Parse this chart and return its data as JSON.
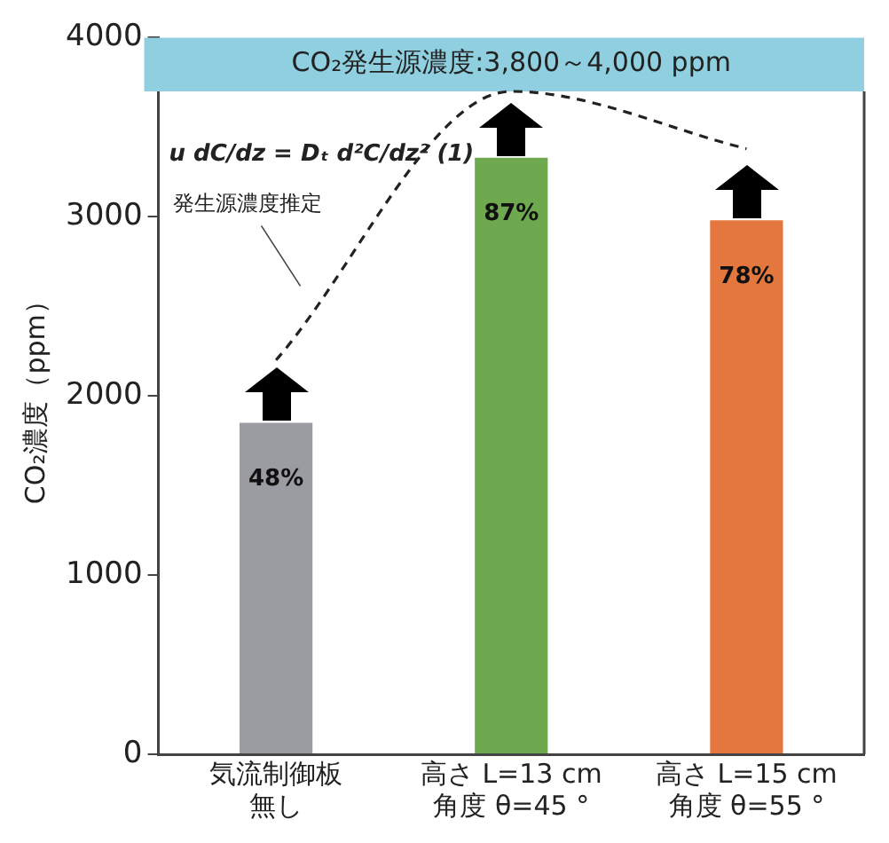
{
  "chart_data": {
    "type": "bar",
    "ylabel": "CO₂濃度（ppm）",
    "categories": [
      "気流制御板無し",
      "高さ L=13 cm 角度 θ=45 °",
      "高さ L=15 cm 角度 θ=55 °"
    ],
    "series": [
      {
        "values": [
          1850,
          3330,
          2980
        ],
        "colors": [
          "#9b9ca1",
          "#6fa94f",
          "#e4773d"
        ]
      },
      {
        "type": "line",
        "values": [
          2200,
          3700,
          3380
        ],
        "color": "#222222",
        "line_style": "dashed",
        "marker": "none"
      }
    ],
    "ylim": [
      0,
      4000
    ],
    "yticks": [
      0,
      1000,
      2000,
      3000,
      4000
    ],
    "grid": false,
    "legend": false,
    "bands": [
      {
        "axis": "y",
        "from": 3700,
        "to": 4000,
        "label": "CO₂発生源濃度:3,800～4,000 ppm",
        "color": "#8fcfdf"
      }
    ],
    "annotations": [
      "u dC/dz = Dₜ d²C/dz² (1)",
      "発生源濃度推定",
      "48%",
      "87%",
      "78%"
    ]
  }
}
